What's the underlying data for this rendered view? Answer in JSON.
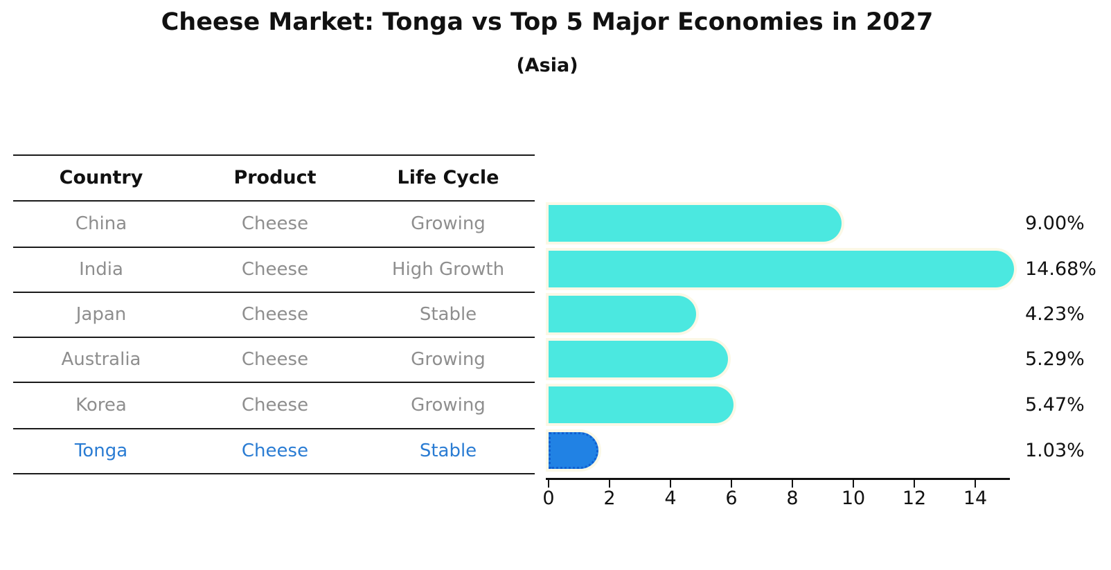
{
  "page": {
    "title": "Cheese Market: Tonga vs Top 5 Major Economies in 2027",
    "subtitle": "(Asia)"
  },
  "table": {
    "headers": [
      "Country",
      "Product",
      "Life Cycle"
    ],
    "rows": [
      {
        "country": "China",
        "product": "Cheese",
        "life_cycle": "Growing",
        "highlight": false
      },
      {
        "country": "India",
        "product": "Cheese",
        "life_cycle": "High Growth",
        "highlight": false
      },
      {
        "country": "Japan",
        "product": "Cheese",
        "life_cycle": "Stable",
        "highlight": false
      },
      {
        "country": "Australia",
        "product": "Cheese",
        "life_cycle": "Growing",
        "highlight": false
      },
      {
        "country": "Korea",
        "product": "Cheese",
        "life_cycle": "Growing",
        "highlight": false
      },
      {
        "country": "Tonga",
        "product": "Cheese",
        "life_cycle": "Stable",
        "highlight": true
      }
    ]
  },
  "chart_data": {
    "type": "bar",
    "orientation": "horizontal",
    "title": "Cheese Market: Tonga vs Top 5 Major Economies in 2027",
    "subtitle": "(Asia)",
    "categories": [
      "China",
      "India",
      "Japan",
      "Australia",
      "Korea",
      "Tonga"
    ],
    "values": [
      9.0,
      14.68,
      4.23,
      5.29,
      5.47,
      1.03
    ],
    "value_labels": [
      "9.00%",
      "14.68%",
      "4.23%",
      "5.29%",
      "5.47%",
      "1.03%"
    ],
    "highlight_index": 5,
    "x_ticks": [
      0,
      2,
      4,
      6,
      8,
      10,
      12,
      14
    ],
    "xlim": [
      0,
      15.5
    ],
    "grid": false,
    "legend": "none",
    "bar_color": "#4be8e0",
    "highlight_bar_color": "#2182e4",
    "highlight_text_color": "#2a7cd3",
    "label_color": "#111111",
    "muted_text_color": "#8e8e8e"
  }
}
